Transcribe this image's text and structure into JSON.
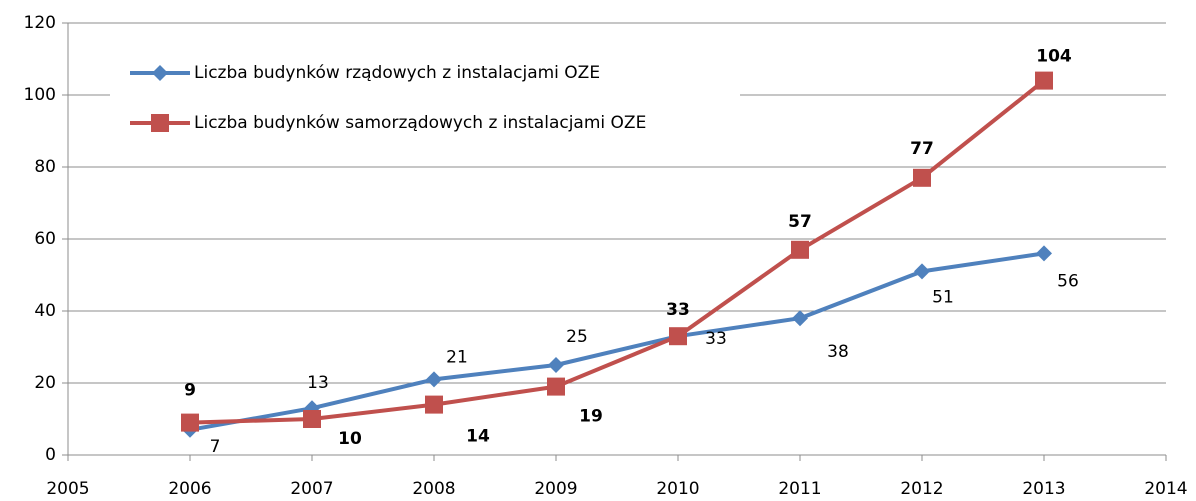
{
  "chart_data": {
    "type": "line",
    "x": [
      2006,
      2007,
      2008,
      2009,
      2010,
      2011,
      2012,
      2013
    ],
    "series": [
      {
        "name": "Liczba budynków rządowych z instalacjami OZE",
        "color": "#4f81bd",
        "marker": "diamond",
        "values": [
          7,
          13,
          21,
          25,
          33,
          38,
          51,
          56
        ]
      },
      {
        "name": "Liczba budynków samorządowych z instalacjami OZE",
        "color": "#c0504d",
        "marker": "square",
        "values": [
          9,
          10,
          14,
          19,
          33,
          57,
          77,
          104
        ]
      }
    ],
    "xlim": [
      2005,
      2014
    ],
    "xticks": [
      2005,
      2006,
      2007,
      2008,
      2009,
      2010,
      2011,
      2012,
      2013,
      2014
    ],
    "ylim": [
      0,
      120
    ],
    "yticks": [
      0,
      20,
      40,
      60,
      80,
      100,
      120
    ],
    "grid": true,
    "legend": "upper left"
  }
}
